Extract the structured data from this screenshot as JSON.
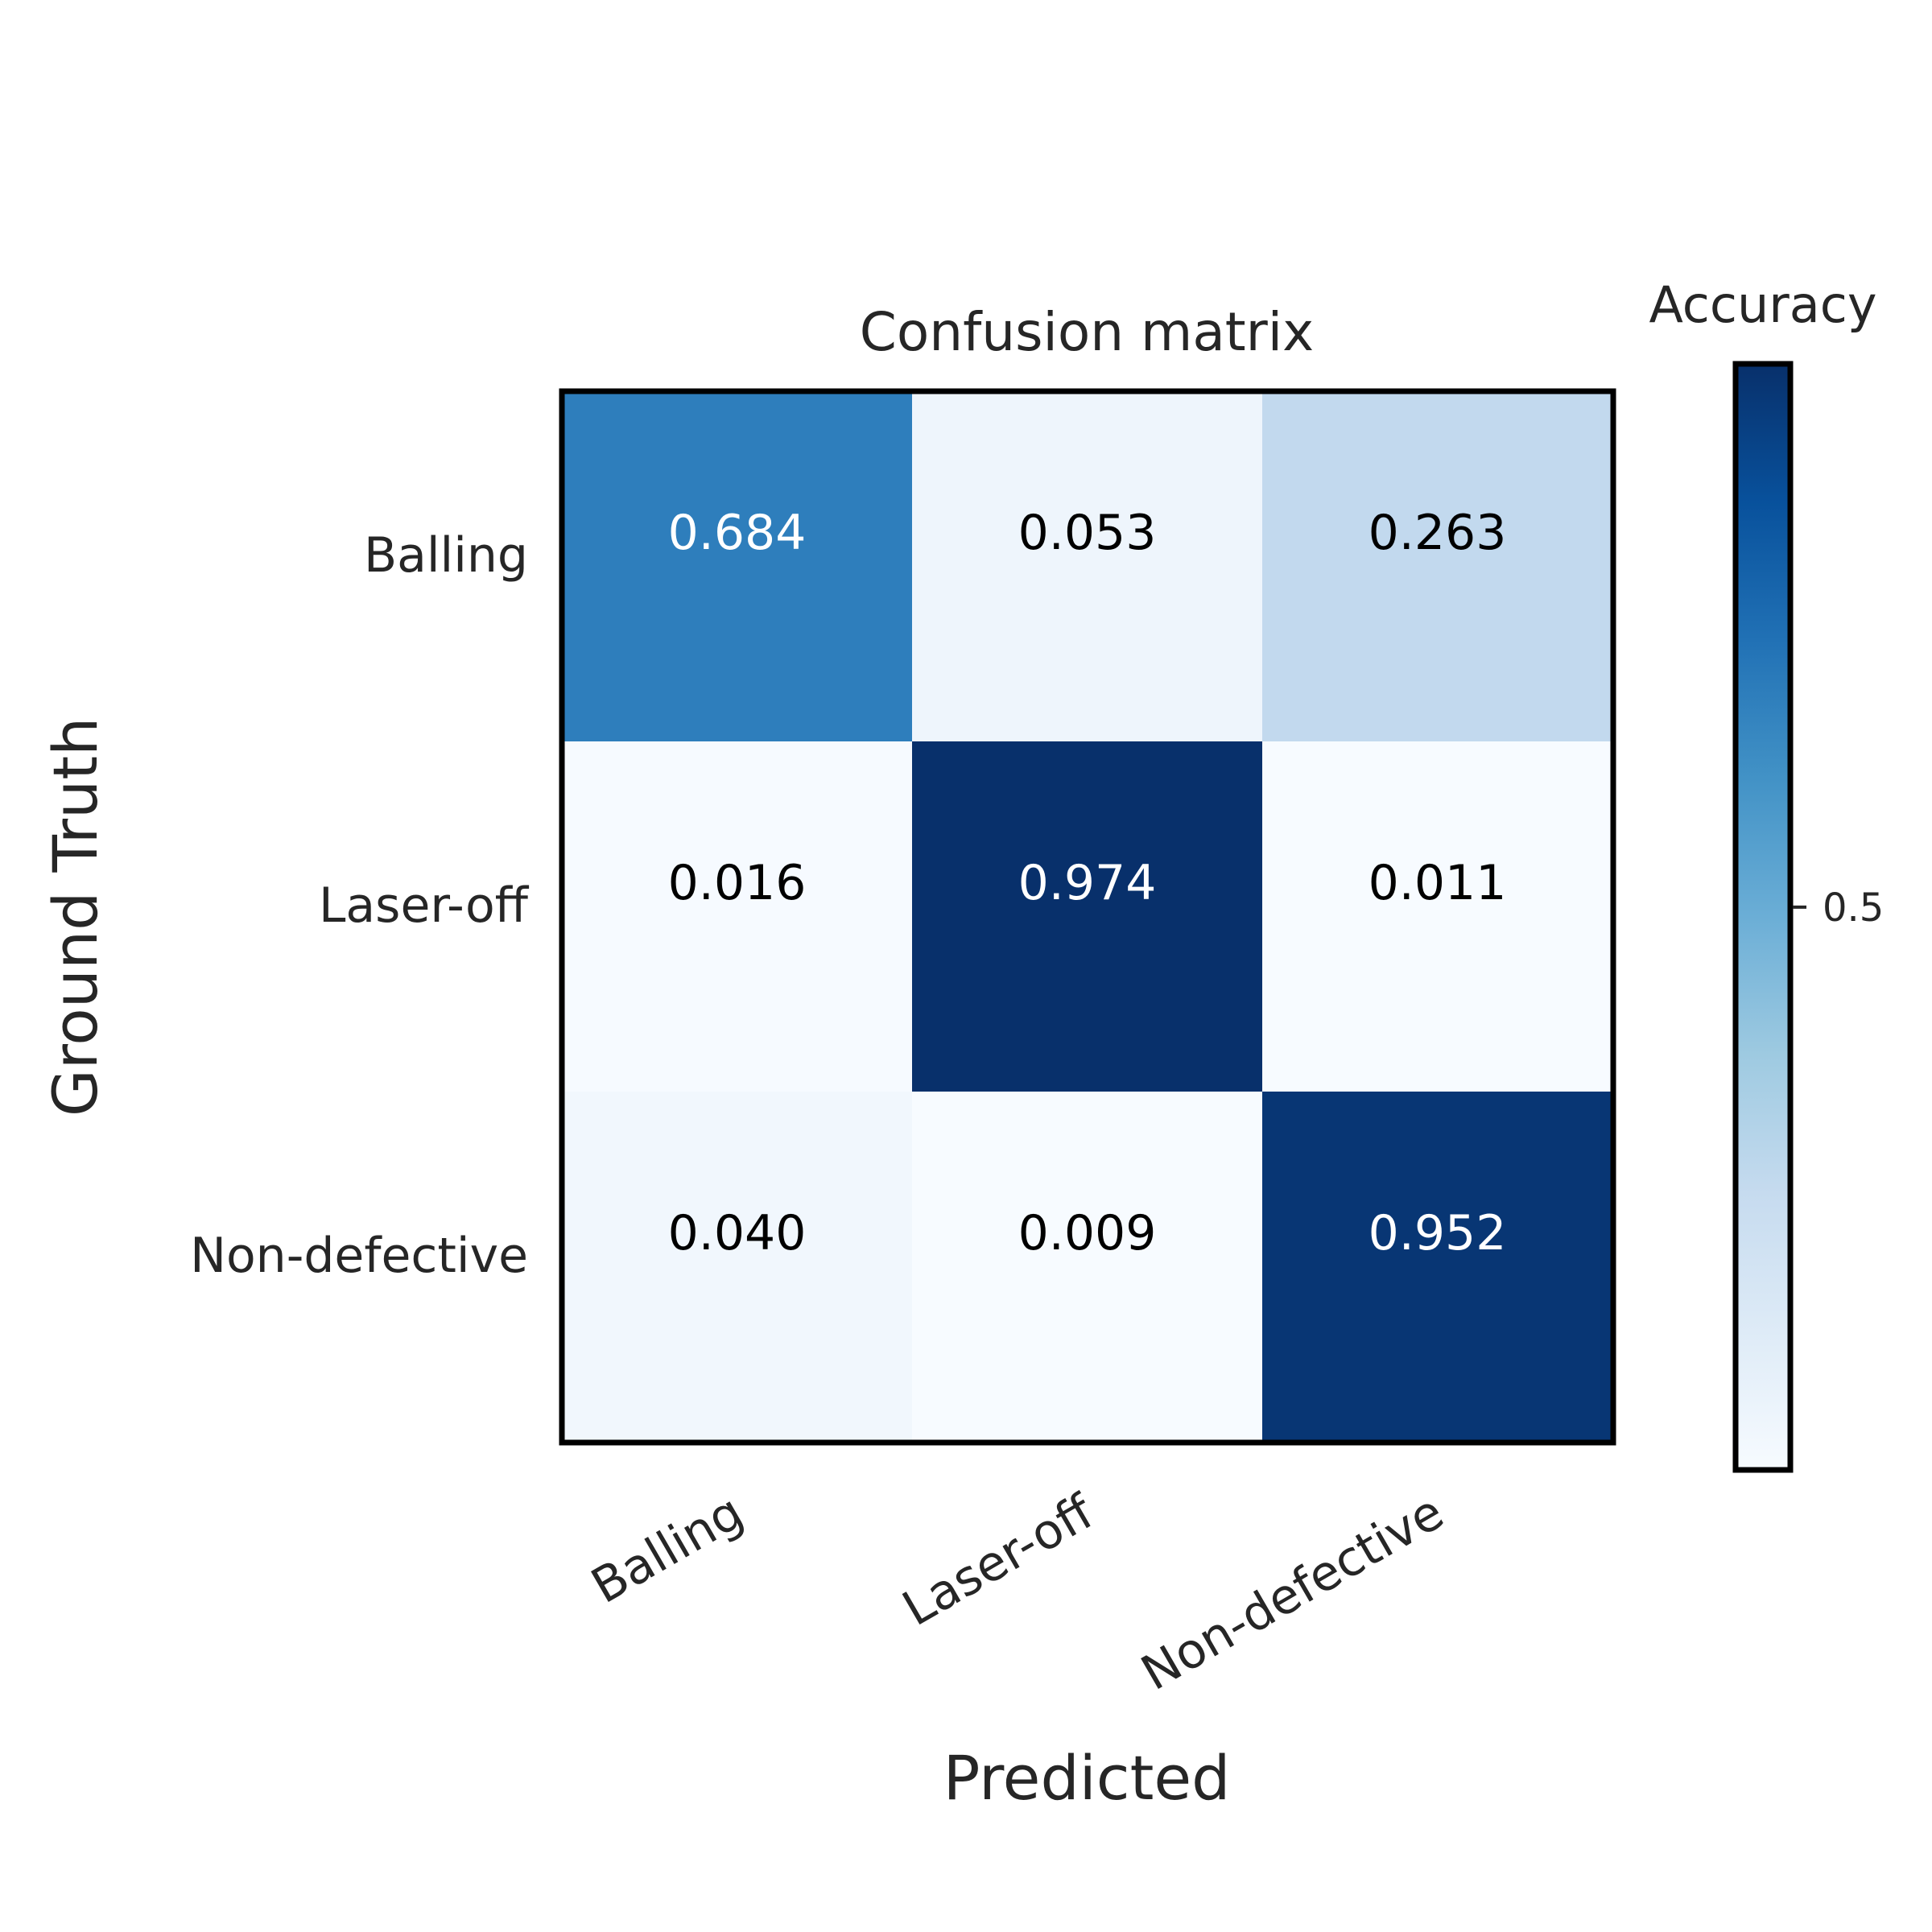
{
  "chart_data": {
    "type": "heatmap",
    "title": "Confusion matrix",
    "xlabel": "Predicted",
    "ylabel": "Ground Truth",
    "x_categories": [
      "Balling",
      "Laser-off",
      "Non-defective"
    ],
    "y_categories": [
      "Balling",
      "Laser-off",
      "Non-defective"
    ],
    "values": [
      [
        0.684,
        0.053,
        0.263
      ],
      [
        0.016,
        0.974,
        0.011
      ],
      [
        0.04,
        0.009,
        0.952
      ]
    ],
    "value_labels": [
      [
        "0.684",
        "0.053",
        "0.263"
      ],
      [
        "0.016",
        "0.974",
        "0.011"
      ],
      [
        "0.040",
        "0.009",
        "0.952"
      ]
    ],
    "colormap": "Blues",
    "colorbar": {
      "title": "Accuracy",
      "range": [
        0.009,
        0.974
      ],
      "ticks": [
        0.5
      ],
      "tick_labels": [
        "0.5"
      ]
    },
    "grid": false
  },
  "colors": {
    "text_dark": "#262626",
    "label_on_dark": "#ffffff",
    "label_on_light": "#000000",
    "frame": "#000000"
  }
}
